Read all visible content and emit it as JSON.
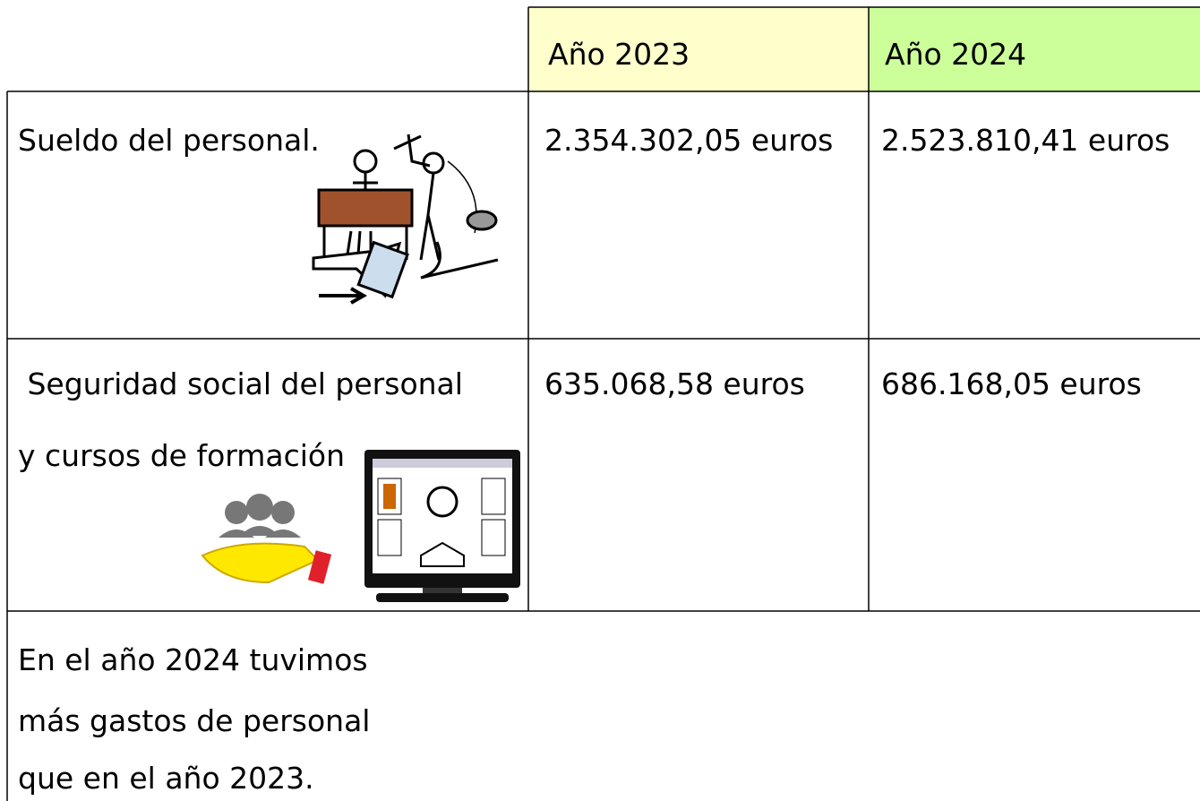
{
  "table": {
    "header": [
      "Año 2023",
      "Año 2024"
    ],
    "rows": [
      {
        "label": [
          "Sueldo del personal."
        ],
        "values": [
          "2.354.302,05 euros",
          "2.523.810,41 euros"
        ]
      },
      {
        "label": [
          " Seguridad social del personal",
          "y cursos de formación"
        ],
        "values": [
          "635.068,58 euros",
          "686.168,05 euros"
        ]
      }
    ],
    "note": [
      "En el año 2024 tuvimos",
      "más gastos de personal",
      "que en el año 2023."
    ]
  }
}
